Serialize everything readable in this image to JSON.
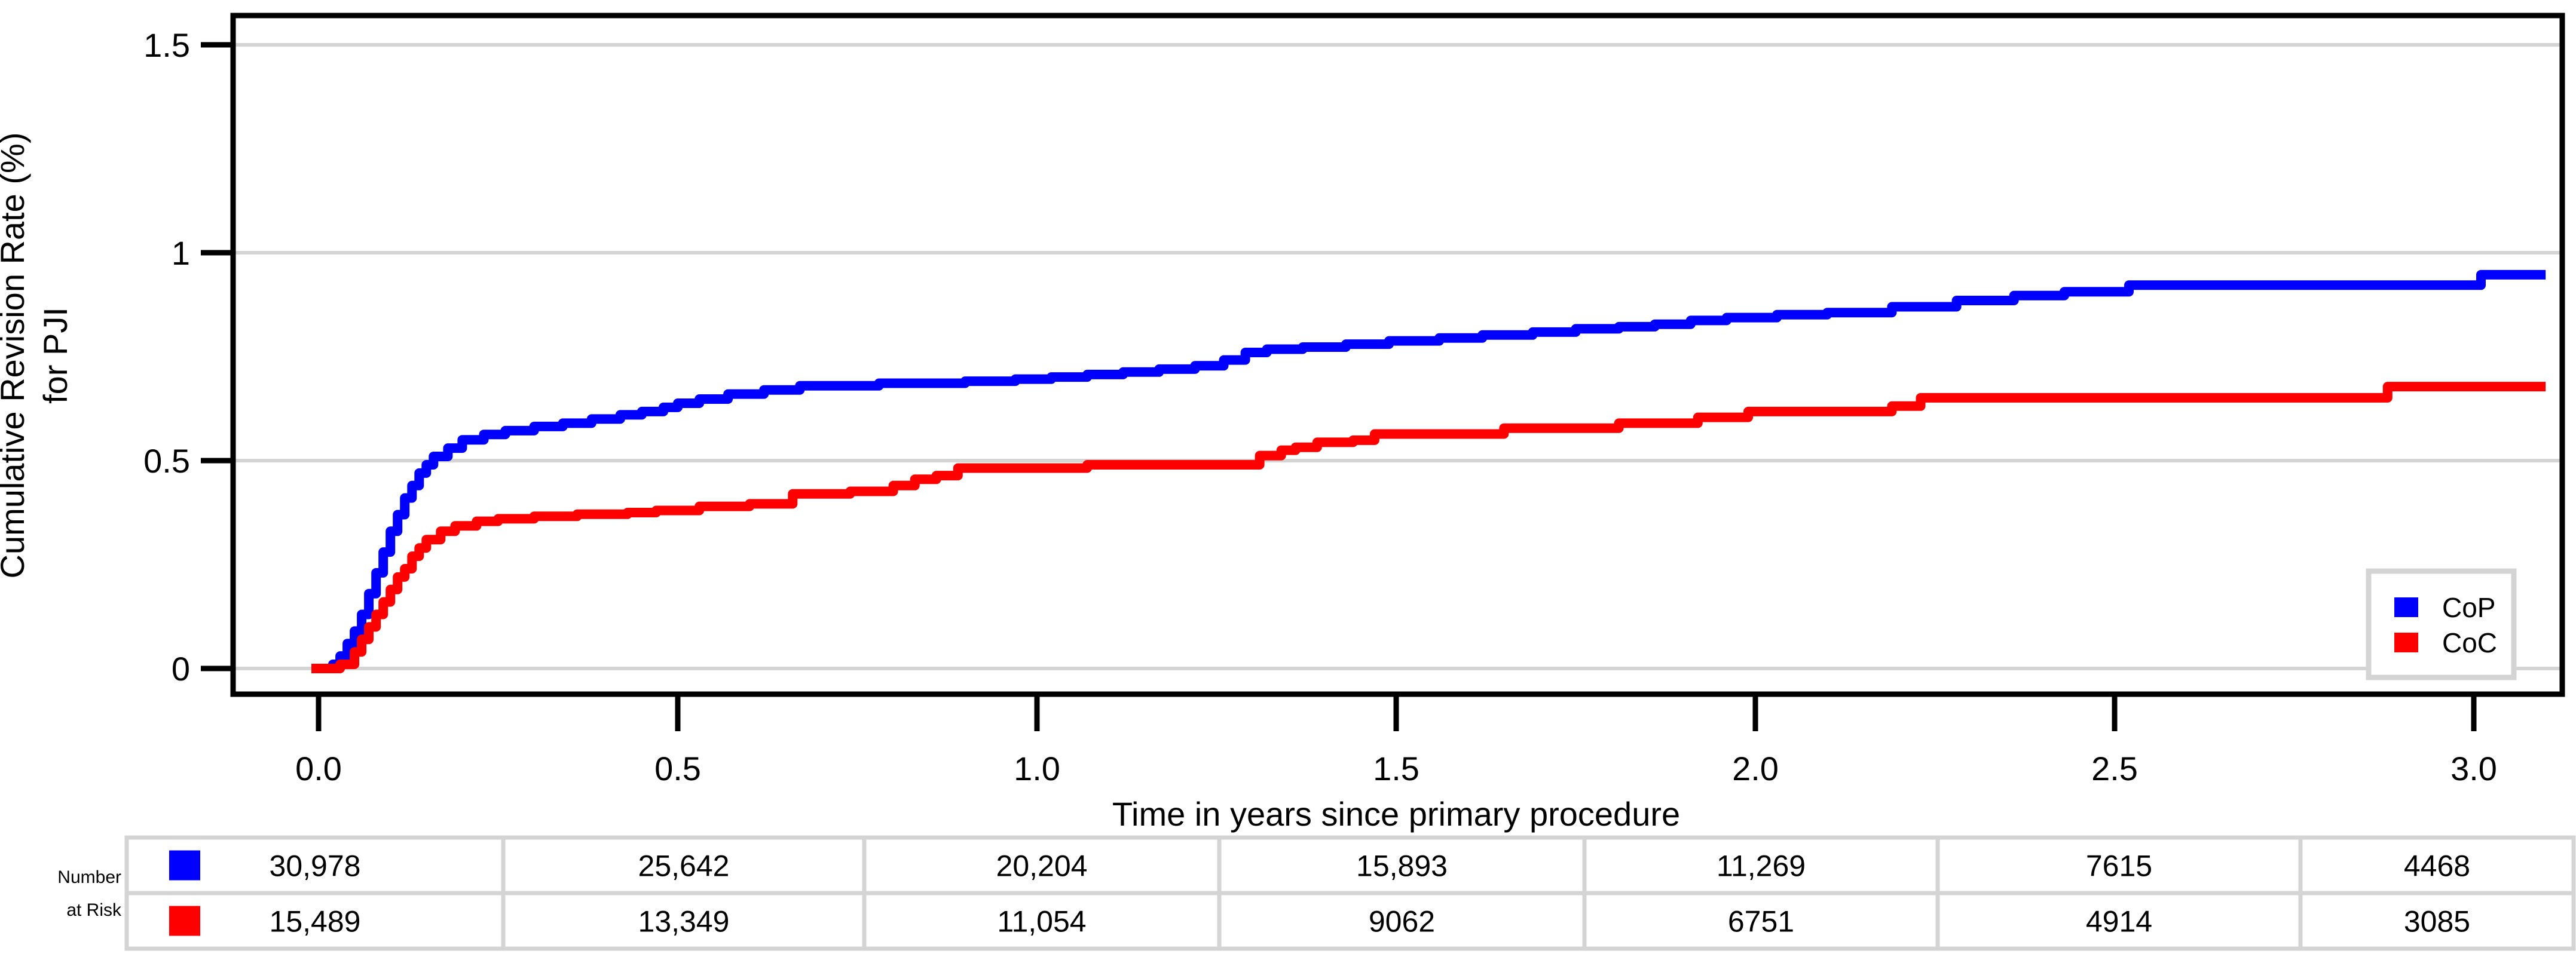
{
  "figure": {
    "background": "#ffffff",
    "axis_color": "#000000",
    "grid_color": "#d4d4d4",
    "table_border_color": "#d4d4d4"
  },
  "chart_data": {
    "type": "line",
    "subtype": "step-after",
    "title": "",
    "xlabel": "Time in years since primary procedure",
    "ylabel_line1": "Cumulative Revision Rate (%)",
    "ylabel_line2": "for PJI",
    "xlim": [
      -0.115,
      3.125
    ],
    "ylim": [
      -0.06,
      1.565
    ],
    "x_ticks": [
      0.0,
      0.5,
      1.0,
      1.5,
      2.0,
      2.5,
      3.0
    ],
    "x_tick_labels": [
      "0.0",
      "0.5",
      "1.0",
      "1.5",
      "2.0",
      "2.5",
      "3.0"
    ],
    "y_ticks": [
      0,
      0.5,
      1,
      1.5
    ],
    "y_tick_labels": [
      "0",
      "0.5",
      "1",
      "1.5"
    ],
    "grid": "horizontal gridlines at each y tick",
    "legend_position": "bottom-right inside plot",
    "series": [
      {
        "name": "CoP",
        "color": "#0000ff",
        "points": [
          [
            -0.01,
            0
          ],
          [
            0.02,
            0.01
          ],
          [
            0.03,
            0.03
          ],
          [
            0.04,
            0.06
          ],
          [
            0.05,
            0.09
          ],
          [
            0.06,
            0.13
          ],
          [
            0.07,
            0.18
          ],
          [
            0.08,
            0.23
          ],
          [
            0.09,
            0.28
          ],
          [
            0.1,
            0.33
          ],
          [
            0.11,
            0.37
          ],
          [
            0.12,
            0.41
          ],
          [
            0.13,
            0.44
          ],
          [
            0.14,
            0.47
          ],
          [
            0.15,
            0.49
          ],
          [
            0.16,
            0.51
          ],
          [
            0.18,
            0.53
          ],
          [
            0.2,
            0.55
          ],
          [
            0.23,
            0.563
          ],
          [
            0.26,
            0.572
          ],
          [
            0.3,
            0.582
          ],
          [
            0.34,
            0.59
          ],
          [
            0.38,
            0.6
          ],
          [
            0.42,
            0.61
          ],
          [
            0.45,
            0.618
          ],
          [
            0.48,
            0.628
          ],
          [
            0.5,
            0.638
          ],
          [
            0.53,
            0.648
          ],
          [
            0.57,
            0.66
          ],
          [
            0.62,
            0.67
          ],
          [
            0.67,
            0.68
          ],
          [
            0.78,
            0.686
          ],
          [
            0.9,
            0.691
          ],
          [
            0.97,
            0.696
          ],
          [
            1.02,
            0.701
          ],
          [
            1.07,
            0.707
          ],
          [
            1.12,
            0.713
          ],
          [
            1.17,
            0.72
          ],
          [
            1.22,
            0.728
          ],
          [
            1.26,
            0.742
          ],
          [
            1.29,
            0.76
          ],
          [
            1.32,
            0.768
          ],
          [
            1.37,
            0.773
          ],
          [
            1.43,
            0.78
          ],
          [
            1.49,
            0.788
          ],
          [
            1.56,
            0.795
          ],
          [
            1.62,
            0.802
          ],
          [
            1.69,
            0.809
          ],
          [
            1.75,
            0.817
          ],
          [
            1.81,
            0.822
          ],
          [
            1.86,
            0.828
          ],
          [
            1.91,
            0.837
          ],
          [
            1.96,
            0.844
          ],
          [
            2.03,
            0.851
          ],
          [
            2.1,
            0.856
          ],
          [
            2.19,
            0.87
          ],
          [
            2.28,
            0.885
          ],
          [
            2.36,
            0.897
          ],
          [
            2.43,
            0.906
          ],
          [
            2.52,
            0.922
          ],
          [
            3.01,
            0.947
          ],
          [
            3.1,
            0.947
          ]
        ]
      },
      {
        "name": "CoC",
        "color": "#ff0000",
        "points": [
          [
            -0.01,
            0
          ],
          [
            0.03,
            0.01
          ],
          [
            0.05,
            0.04
          ],
          [
            0.06,
            0.07
          ],
          [
            0.07,
            0.1
          ],
          [
            0.08,
            0.13
          ],
          [
            0.09,
            0.16
          ],
          [
            0.1,
            0.19
          ],
          [
            0.11,
            0.22
          ],
          [
            0.12,
            0.24
          ],
          [
            0.13,
            0.27
          ],
          [
            0.14,
            0.29
          ],
          [
            0.15,
            0.31
          ],
          [
            0.17,
            0.33
          ],
          [
            0.19,
            0.343
          ],
          [
            0.22,
            0.354
          ],
          [
            0.25,
            0.36
          ],
          [
            0.3,
            0.366
          ],
          [
            0.36,
            0.371
          ],
          [
            0.43,
            0.375
          ],
          [
            0.47,
            0.38
          ],
          [
            0.53,
            0.39
          ],
          [
            0.6,
            0.396
          ],
          [
            0.66,
            0.42
          ],
          [
            0.74,
            0.426
          ],
          [
            0.8,
            0.44
          ],
          [
            0.83,
            0.455
          ],
          [
            0.86,
            0.464
          ],
          [
            0.89,
            0.482
          ],
          [
            1.07,
            0.49
          ],
          [
            1.31,
            0.512
          ],
          [
            1.34,
            0.525
          ],
          [
            1.36,
            0.532
          ],
          [
            1.39,
            0.544
          ],
          [
            1.44,
            0.549
          ],
          [
            1.47,
            0.564
          ],
          [
            1.65,
            0.578
          ],
          [
            1.81,
            0.59
          ],
          [
            1.92,
            0.604
          ],
          [
            1.99,
            0.618
          ],
          [
            2.19,
            0.631
          ],
          [
            2.23,
            0.651
          ],
          [
            2.88,
            0.678
          ],
          [
            3.1,
            0.678
          ]
        ]
      }
    ]
  },
  "legend": {
    "items": [
      {
        "label": "CoP",
        "color": "#0000ff"
      },
      {
        "label": "CoC",
        "color": "#ff0000"
      }
    ]
  },
  "risk_table": {
    "row_label_line1": "Number",
    "row_label_line2": "at Risk",
    "rows": [
      {
        "series": "CoP",
        "color": "#0000ff",
        "values": [
          "30,978",
          "25,642",
          "20,204",
          "15,893",
          "11,269",
          "7615",
          "4468"
        ]
      },
      {
        "series": "CoC",
        "color": "#ff0000",
        "values": [
          "15,489",
          "13,349",
          "11,054",
          "9062",
          "6751",
          "4914",
          "3085"
        ]
      }
    ]
  }
}
